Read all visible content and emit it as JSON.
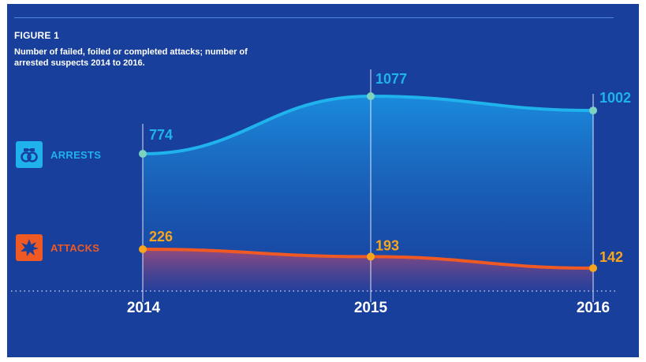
{
  "figure": {
    "label": "FIGURE 1",
    "subtitle": "Number of failed, foiled or completed attacks; number of arrested suspects 2014 to 2016."
  },
  "legend": {
    "arrests": {
      "label": "ARRESTS",
      "icon": "handcuffs-icon"
    },
    "attacks": {
      "label": "ATTACKS",
      "icon": "explosion-icon"
    }
  },
  "colors": {
    "background": "#173f9b",
    "arrests": "#1fb2ec",
    "arrests_marker": "#7dd3c0",
    "attacks": "#ef5a24",
    "attacks_marker": "#f7a51c",
    "axis_label": "#ffffff"
  },
  "chart_data": {
    "type": "area",
    "categories": [
      "2014",
      "2015",
      "2016"
    ],
    "series": [
      {
        "name": "ARRESTS",
        "values": [
          774,
          1077,
          1002
        ]
      },
      {
        "name": "ATTACKS",
        "values": [
          226,
          193,
          142
        ]
      }
    ],
    "title": "FIGURE 1",
    "subtitle": "Number of failed, foiled or completed attacks; number of arrested suspects 2014 to 2016.",
    "grid": false,
    "legend": "left"
  }
}
